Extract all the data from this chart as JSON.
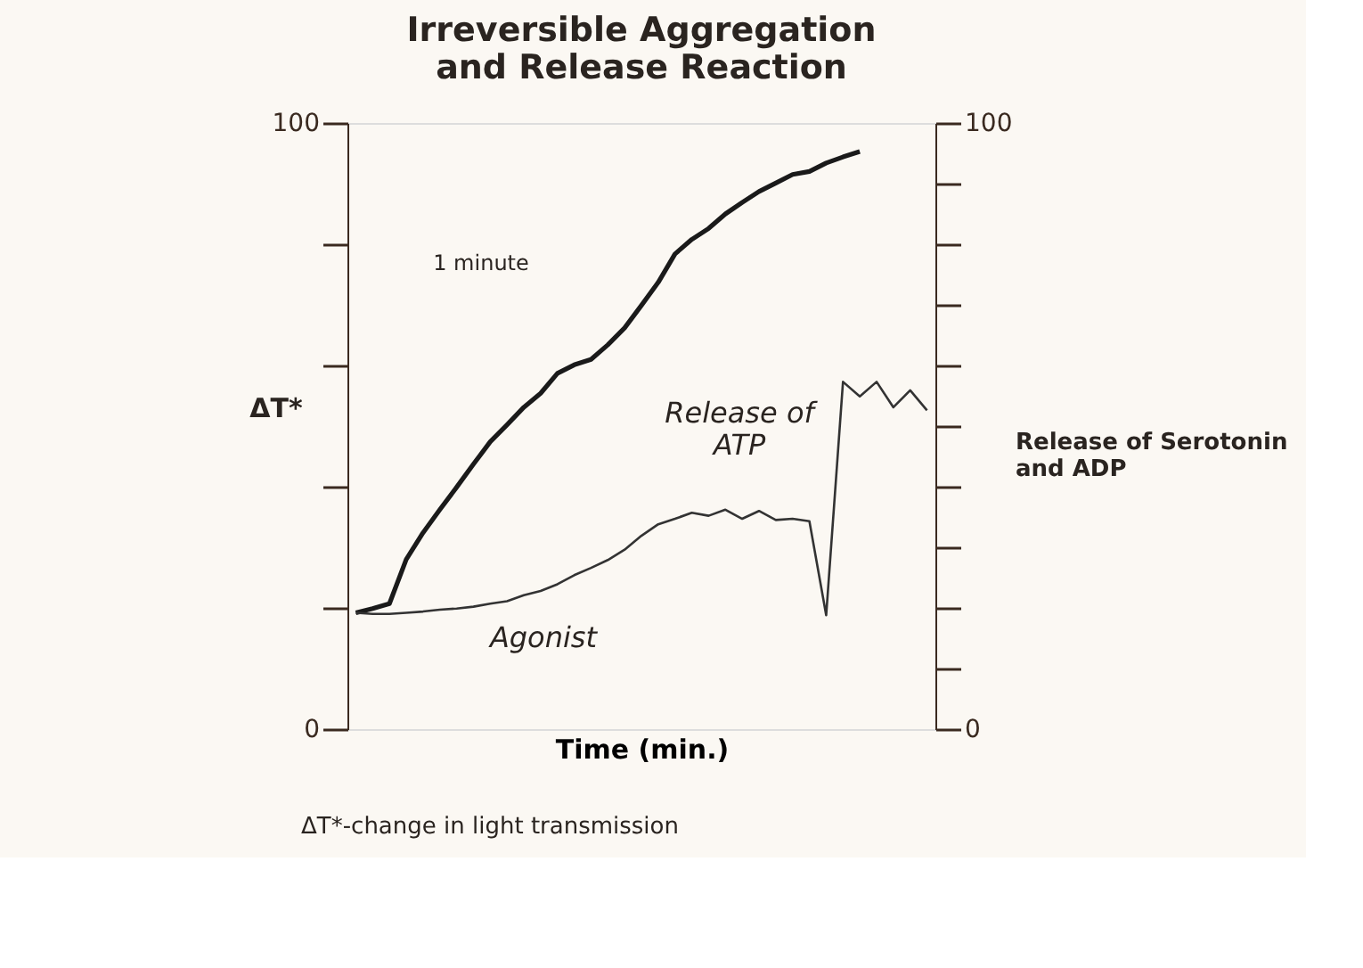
{
  "chart_data": {
    "type": "line",
    "title": "Irreversible Aggregation\nand Release Reaction",
    "xlabel": "Time (min.)",
    "ylabel": "ΔT*",
    "categories": [
      null,
      null,
      null,
      null,
      null,
      null,
      null,
      null,
      null,
      null,
      null,
      null,
      null,
      null,
      null,
      null,
      null,
      null,
      null,
      null,
      null,
      null,
      null,
      null,
      null,
      null,
      null,
      null,
      null,
      null,
      null,
      null,
      null,
      null,
      null
    ],
    "series": [
      {
        "color": "#1a1a1a",
        "values": [
          19.2,
          19.9,
          20.7,
          28,
          32.4,
          36.2,
          39.9,
          43.7,
          47.4,
          50.2,
          53.1,
          55.4,
          58.7,
          60.1,
          61.0,
          63.4,
          66.2,
          69.9,
          73.7,
          78.4,
          80.8,
          82.6,
          85.0,
          86.9,
          88.7,
          90.1,
          91.5,
          92.0,
          93.4,
          94.4,
          95.3,
          null,
          null,
          null,
          null
        ]
      },
      {
        "color": "#333333",
        "values": [
          19.2,
          19.0,
          19.0,
          19.2,
          19.4,
          19.7,
          19.9,
          20.2,
          20.7,
          21.1,
          22.1,
          22.8,
          23.9,
          25.4,
          26.6,
          27.9,
          29.6,
          31.9,
          33.8,
          34.7,
          35.7,
          35.2,
          36.2,
          34.7,
          36.0,
          34.5,
          34.7,
          34.3,
          18.8,
          57.3,
          54.9,
          57.3,
          53.1,
          55.9,
          52.6
        ]
      }
    ],
    "ylim": [
      0,
      100
    ],
    "yticks": [
      0,
      {
        "value": 10,
        "label": null
      },
      {
        "value": 20,
        "label": null
      },
      {
        "value": 30,
        "label": null
      },
      {
        "value": 40,
        "label": null
      },
      {
        "value": 50,
        "label": null
      },
      {
        "value": 60,
        "label": null
      },
      {
        "value": 70,
        "label": null
      },
      {
        "value": 80,
        "label": null
      },
      {
        "value": 90,
        "label": null
      },
      100
    ],
    "y2lim": [
      0,
      100
    ],
    "y2ticks": [
      0,
      {
        "value": 10,
        "label": null
      },
      {
        "value": 20,
        "label": null
      },
      {
        "value": 30,
        "label": null
      },
      {
        "value": 40,
        "label": null
      },
      {
        "value": 50,
        "label": null
      },
      {
        "value": 60,
        "label": null
      },
      {
        "value": 70,
        "label": null
      },
      {
        "value": 80,
        "label": null
      },
      {
        "value": 90,
        "label": null
      },
      100
    ],
    "grid": false,
    "annotations": [
      "1 minute",
      "Release of\nATP",
      "Agonist",
      "Release of Serotonin\nand ADP",
      "ΔT*-change in light transmission"
    ]
  }
}
